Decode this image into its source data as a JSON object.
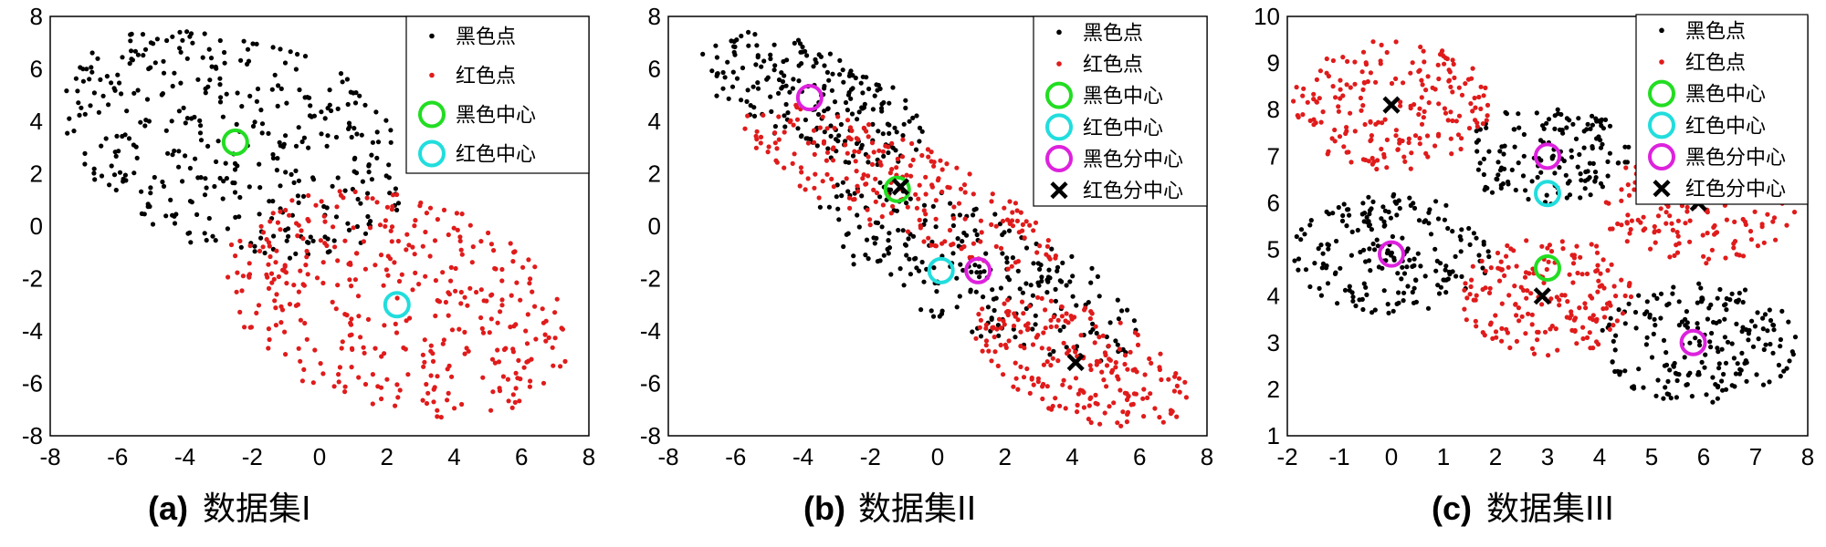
{
  "chart_data": [
    {
      "type": "scatter",
      "id": "a",
      "caption_tag": "(a)",
      "caption_text": "数据集I",
      "xlim": [
        -8,
        8
      ],
      "ylim": [
        -8,
        8
      ],
      "xticks": [
        "-8",
        "-6",
        "-4",
        "-2",
        "0",
        "2",
        "4",
        "6",
        "8"
      ],
      "yticks": [
        "8",
        "6",
        "4",
        "2",
        "0",
        "-2",
        "-4",
        "-6",
        "-8"
      ],
      "legend_position": "top-right",
      "legend": [
        "黑色点",
        "红色点",
        "黑色中心",
        "红色中心"
      ],
      "series": [
        {
          "name": "黑色点",
          "marker": "dot",
          "color": "#000000",
          "regions": [
            {
              "center": [
                -2.5,
                3.2
              ],
              "spread": [
                5.5,
                4.0
              ],
              "rotation": -32,
              "count": 380
            }
          ]
        },
        {
          "name": "红色点",
          "marker": "dot",
          "color": "#e01b1b",
          "regions": [
            {
              "center": [
                2.3,
                -3.0
              ],
              "spread": [
                5.5,
                4.0
              ],
              "rotation": -32,
              "count": 380
            }
          ]
        }
      ],
      "markers": [
        {
          "name": "黑色中心",
          "shape": "circle",
          "color": "#22dd22",
          "x": -2.5,
          "y": 3.2
        },
        {
          "name": "红色中心",
          "shape": "circle",
          "color": "#22dddd",
          "x": 2.3,
          "y": -3.0
        }
      ]
    },
    {
      "type": "scatter",
      "id": "b",
      "caption_tag": "(b)",
      "caption_text": "数据集II",
      "xlim": [
        -8,
        8
      ],
      "ylim": [
        -8,
        8
      ],
      "xticks": [
        "-8",
        "-6",
        "-4",
        "-2",
        "0",
        "2",
        "4",
        "6",
        "8"
      ],
      "yticks": [
        "8",
        "6",
        "4",
        "2",
        "0",
        "-2",
        "-4",
        "-6",
        "-8"
      ],
      "legend_position": "top-right",
      "legend": [
        "黑色点",
        "红色点",
        "黑色中心",
        "红色中心",
        "黑色分中心",
        "红色分中心"
      ],
      "series": [
        {
          "name": "黑色点",
          "marker": "dot",
          "color": "#000000",
          "regions": [
            {
              "center": [
                -3.8,
                4.9
              ],
              "spread": [
                3.8,
                1.9
              ],
              "rotation": -32,
              "count": 220
            },
            {
              "center": [
                1.2,
                -1.7
              ],
              "spread": [
                5.5,
                2.2
              ],
              "rotation": -32,
              "count": 250
            }
          ]
        },
        {
          "name": "红色点",
          "marker": "dot",
          "color": "#e01b1b",
          "regions": [
            {
              "center": [
                -1.2,
                1.5
              ],
              "spread": [
                5.5,
                1.7
              ],
              "rotation": -32,
              "count": 230
            },
            {
              "center": [
                4.2,
                -5.2
              ],
              "spread": [
                3.6,
                2.0
              ],
              "rotation": -32,
              "count": 220
            }
          ]
        }
      ],
      "markers": [
        {
          "name": "黑色中心",
          "shape": "circle",
          "color": "#22dd22",
          "x": -1.2,
          "y": 1.4
        },
        {
          "name": "红色中心",
          "shape": "circle",
          "color": "#22dddd",
          "x": 0.1,
          "y": -1.7
        },
        {
          "name": "黑色分中心",
          "shape": "circle",
          "color": "#dd22dd",
          "x": -3.8,
          "y": 4.9
        },
        {
          "name": "黑色分中心",
          "shape": "circle",
          "color": "#dd22dd",
          "x": 1.2,
          "y": -1.7
        },
        {
          "name": "红色分中心",
          "shape": "x",
          "color": "#000000",
          "x": -1.1,
          "y": 1.5
        },
        {
          "name": "红色分中心",
          "shape": "x",
          "color": "#000000",
          "x": 4.1,
          "y": -5.2
        }
      ]
    },
    {
      "type": "scatter",
      "id": "c",
      "caption_tag": "(c)",
      "caption_text": "数据集III",
      "xlim": [
        -2,
        8
      ],
      "ylim": [
        1,
        10
      ],
      "xticks": [
        "-2",
        "-1",
        "0",
        "1",
        "2",
        "3",
        "4",
        "5",
        "6",
        "7",
        "8"
      ],
      "yticks": [
        "10",
        "9",
        "8",
        "7",
        "6",
        "5",
        "4",
        "3",
        "2",
        "1"
      ],
      "legend_position": "top-right",
      "legend": [
        "黑色点",
        "红色点",
        "黑色中心",
        "红色中心",
        "黑色分中心",
        "红色分中心"
      ],
      "series": [
        {
          "name": "黑色点",
          "marker": "dot",
          "color": "#000000",
          "regions": [
            {
              "center": [
                0.0,
                4.9
              ],
              "spread": [
                1.9,
                1.3
              ],
              "rotation": 0,
              "count": 200
            },
            {
              "center": [
                3.0,
                7.0
              ],
              "spread": [
                1.6,
                1.1
              ],
              "rotation": 0,
              "count": 150
            },
            {
              "center": [
                5.9,
                3.0
              ],
              "spread": [
                1.9,
                1.3
              ],
              "rotation": 0,
              "count": 200
            }
          ]
        },
        {
          "name": "红色点",
          "marker": "dot",
          "color": "#e01b1b",
          "regions": [
            {
              "center": [
                0.0,
                8.1
              ],
              "spread": [
                1.9,
                1.4
              ],
              "rotation": 0,
              "count": 200
            },
            {
              "center": [
                3.0,
                4.0
              ],
              "spread": [
                1.7,
                1.3
              ],
              "rotation": 0,
              "count": 180
            },
            {
              "center": [
                5.9,
                6.0
              ],
              "spread": [
                1.9,
                1.3
              ],
              "rotation": 0,
              "count": 180
            }
          ]
        }
      ],
      "markers": [
        {
          "name": "黑色中心",
          "shape": "circle",
          "color": "#22dd22",
          "x": 3.0,
          "y": 4.6
        },
        {
          "name": "红色中心",
          "shape": "circle",
          "color": "#22dddd",
          "x": 3.0,
          "y": 6.2
        },
        {
          "name": "黑色分中心",
          "shape": "circle",
          "color": "#dd22dd",
          "x": 0.0,
          "y": 4.9
        },
        {
          "name": "黑色分中心",
          "shape": "circle",
          "color": "#dd22dd",
          "x": 3.0,
          "y": 7.0
        },
        {
          "name": "黑色分中心",
          "shape": "circle",
          "color": "#dd22dd",
          "x": 5.8,
          "y": 3.0
        },
        {
          "name": "红色分中心",
          "shape": "x",
          "color": "#000000",
          "x": 0.0,
          "y": 8.1
        },
        {
          "name": "红色分中心",
          "shape": "x",
          "color": "#000000",
          "x": 2.9,
          "y": 4.0
        },
        {
          "name": "红色分中心",
          "shape": "x",
          "color": "#000000",
          "x": 5.9,
          "y": 6.0
        }
      ]
    }
  ]
}
